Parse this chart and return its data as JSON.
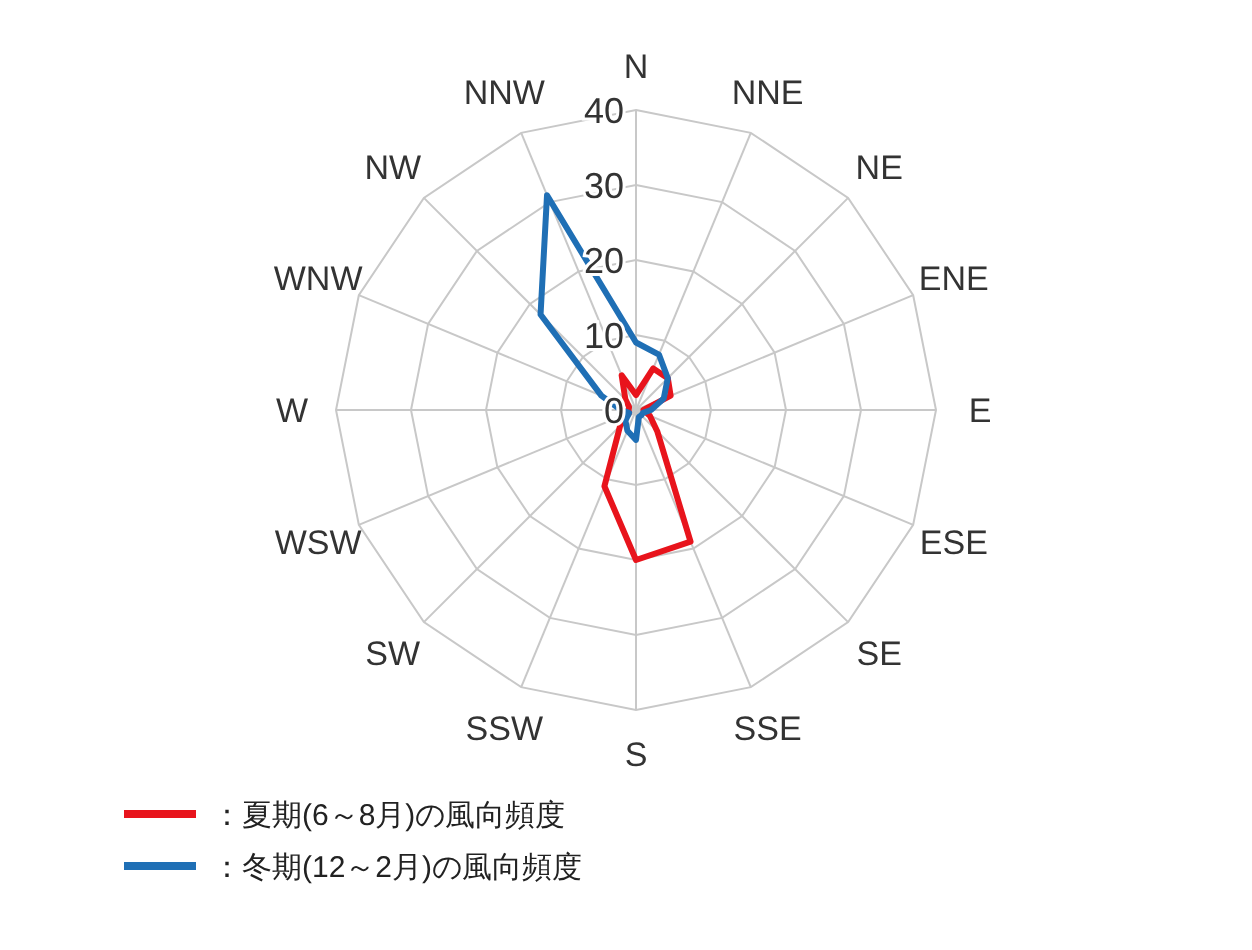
{
  "chart_data": {
    "type": "radar",
    "categories": [
      "N",
      "NNE",
      "NE",
      "ENE",
      "E",
      "ESE",
      "SE",
      "SSE",
      "S",
      "SSW",
      "SW",
      "WSW",
      "W",
      "WNW",
      "NW",
      "NNW"
    ],
    "series": [
      {
        "name": "：夏期(6～8月)の風向頻度",
        "color": "#e8141c",
        "values": [
          2,
          6,
          6,
          5,
          1,
          2,
          4,
          19,
          20,
          11,
          3,
          1,
          1,
          1,
          2,
          5
        ]
      },
      {
        "name": "：冬期(12～2月)の風向頻度",
        "color": "#1f6fb5",
        "values": [
          9,
          8,
          6,
          4,
          2,
          1,
          1,
          1,
          4,
          3,
          2,
          1,
          2,
          5,
          18,
          31
        ]
      }
    ],
    "ylim": [
      0,
      40
    ],
    "yticks": [
      0,
      10,
      20,
      30,
      40
    ],
    "grid": true,
    "legend": "bottom",
    "line_style": "solid",
    "marker": "none"
  }
}
